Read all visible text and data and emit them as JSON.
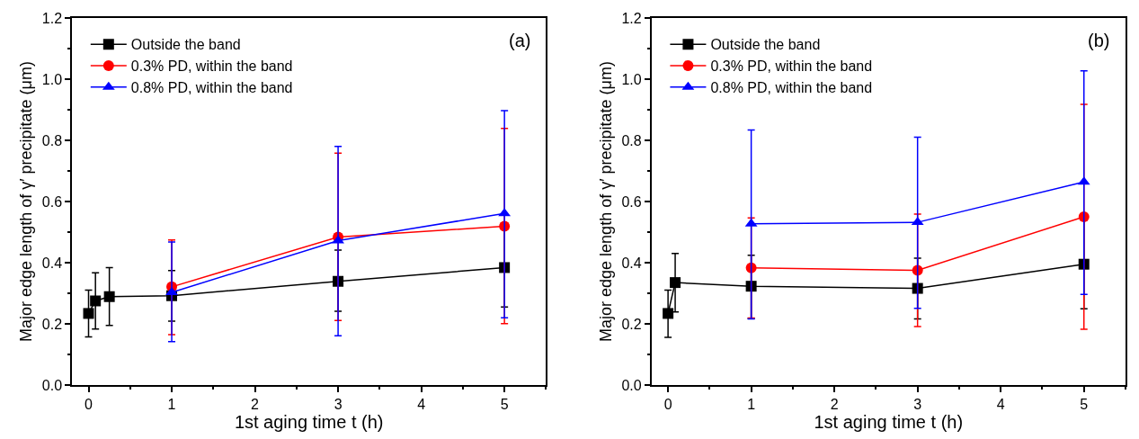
{
  "chart_data": [
    {
      "type": "line",
      "xlabel": "1st aging time t (h)",
      "ylabel": "Major edge length of γ′ precipitate (μm)",
      "annotations": [
        "(a)"
      ],
      "xlim": [
        -0.2,
        5.5
      ],
      "ylim": [
        0,
        1.2
      ],
      "xticks": [
        0,
        1,
        2,
        3,
        4,
        5
      ],
      "yticks": [
        {
          "value": 0,
          "label": "0.0"
        },
        {
          "value": 0.2,
          "label": "0.2"
        },
        {
          "value": 0.4,
          "label": "0.4"
        },
        {
          "value": 0.6,
          "label": "0.6"
        },
        {
          "value": 0.8,
          "label": "0.8"
        },
        {
          "value": 1.0,
          "label": "1.0"
        },
        {
          "value": 1.2,
          "label": "1.2"
        }
      ],
      "grid": false,
      "legend": "top left",
      "line_style": "solid",
      "series": [
        {
          "name": "Outside the band",
          "color": "#000000",
          "marker": "square",
          "x": [
            0,
            0.083,
            0.25,
            1,
            3,
            5
          ],
          "values": [
            0.234,
            0.275,
            0.289,
            0.292,
            0.339,
            0.384
          ],
          "errors": [
            [
              0.157,
              0.31
            ],
            [
              0.183,
              0.367
            ],
            [
              0.195,
              0.384
            ],
            [
              0.209,
              0.374
            ],
            [
              0.241,
              0.441
            ],
            [
              0.255,
              0.513
            ]
          ]
        },
        {
          "name": "0.3% PD, within the band",
          "color": "#ff0000",
          "marker": "circle",
          "x": [
            1,
            3,
            5
          ],
          "values": [
            0.321,
            0.484,
            0.519
          ],
          "errors": [
            [
              0.165,
              0.474
            ],
            [
              0.211,
              0.758
            ],
            [
              0.201,
              0.839
            ]
          ]
        },
        {
          "name": "0.8% PD, within the band",
          "color": "#0000ff",
          "marker": "triangle",
          "x": [
            1,
            3,
            5
          ],
          "values": [
            0.303,
            0.472,
            0.561
          ],
          "errors": [
            [
              0.142,
              0.468
            ],
            [
              0.161,
              0.78
            ],
            [
              0.22,
              0.897
            ]
          ]
        }
      ]
    },
    {
      "type": "line",
      "xlabel": "1st aging time t (h)",
      "ylabel": "Major edge length of γ′ precipitate (μm)",
      "annotations": [
        "(b)"
      ],
      "xlim": [
        -0.2,
        5.5
      ],
      "ylim": [
        0,
        1.2
      ],
      "xticks": [
        0,
        1,
        2,
        3,
        4,
        5
      ],
      "yticks": [
        {
          "value": 0,
          "label": "0.0"
        },
        {
          "value": 0.2,
          "label": "0.2"
        },
        {
          "value": 0.4,
          "label": "0.4"
        },
        {
          "value": 0.6,
          "label": "0.6"
        },
        {
          "value": 0.8,
          "label": "0.8"
        },
        {
          "value": 1.0,
          "label": "1.0"
        },
        {
          "value": 1.2,
          "label": "1.2"
        }
      ],
      "grid": false,
      "legend": "top left",
      "line_style": "solid",
      "series": [
        {
          "name": "Outside the band",
          "color": "#000000",
          "marker": "square",
          "x": [
            0,
            0.086,
            1,
            3,
            5
          ],
          "values": [
            0.234,
            0.335,
            0.323,
            0.316,
            0.395
          ],
          "errors": [
            [
              0.156,
              0.31
            ],
            [
              0.239,
              0.43
            ],
            [
              0.218,
              0.424
            ],
            [
              0.216,
              0.415
            ],
            [
              0.249,
              0.541
            ]
          ]
        },
        {
          "name": "0.3% PD, within the band",
          "color": "#ff0000",
          "marker": "circle",
          "x": [
            1,
            3,
            5
          ],
          "values": [
            0.383,
            0.375,
            0.55
          ],
          "errors": [
            [
              0.219,
              0.546
            ],
            [
              0.191,
              0.559
            ],
            [
              0.182,
              0.918
            ]
          ]
        },
        {
          "name": "0.8% PD, within the band",
          "color": "#0000ff",
          "marker": "triangle",
          "x": [
            1,
            3,
            5
          ],
          "values": [
            0.527,
            0.532,
            0.664
          ],
          "errors": [
            [
              0.216,
              0.834
            ],
            [
              0.251,
              0.81
            ],
            [
              0.296,
              1.027
            ]
          ]
        }
      ]
    }
  ]
}
